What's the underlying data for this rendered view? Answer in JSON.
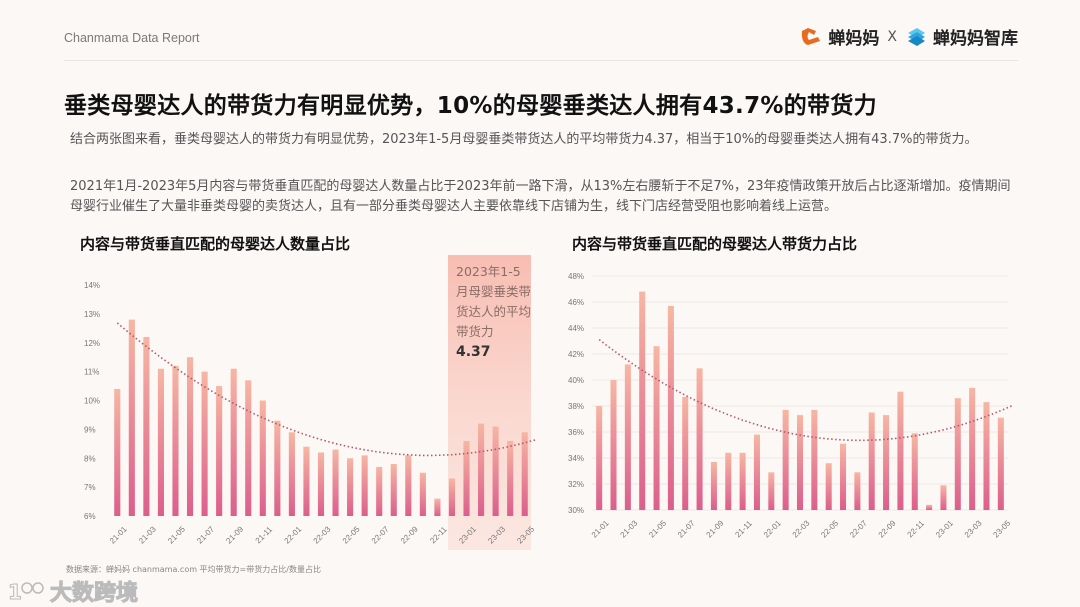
{
  "header": {
    "report_tag": "Chanmama Data Report",
    "logo_left": "蝉妈妈",
    "logo_sep": "X",
    "logo_right": "蝉妈妈智库",
    "brand_colors": {
      "chanmama_orange": "#e86a1f",
      "zhiku_blue": "#2aa7e0"
    }
  },
  "headline": "垂类母婴达人的带货力有明显优势，10%的母婴垂类达人拥有43.7%的带货力",
  "paragraphs": [
    "结合两张图来看，垂类母婴达人的带货力有明显优势，2023年1-5月母婴垂类带货达人的平均带货力4.37，相当于10%的母婴垂类达人拥有43.7%的带货力。",
    "2021年1月-2023年5月内容与带货垂直匹配的母婴达人数量占比于2023年前一路下滑，从13%左右腰斩于不足7%，23年疫情政策开放后占比逐渐增加。疫情期间母婴行业催生了大量非垂类母婴的卖货达人，且有一部分垂类母婴达人主要依靠线下店铺为生，线下门店经营受阻也影响着线上运营。"
  ],
  "highlight": {
    "text": "2023年1-5月母婴垂类带货达人的平均带货力",
    "value": "4.37"
  },
  "footer": {
    "source": "数据来源：蝉妈妈 chanmama.com    平均带货力=带货力占比/数量占比",
    "watermark": "大数跨境"
  },
  "chart_data": [
    {
      "type": "bar",
      "title": "内容与带货垂直匹配的母婴达人数量占比",
      "xlabel": "",
      "ylabel": "",
      "ylim": [
        6,
        14
      ],
      "yticks": [
        "6%",
        "7%",
        "8%",
        "9%",
        "10%",
        "11%",
        "12%",
        "13%",
        "14%"
      ],
      "tick_labels": [
        "21-01",
        "21-03",
        "21-05",
        "21-07",
        "21-09",
        "21-11",
        "22-01",
        "22-03",
        "22-05",
        "22-07",
        "22-09",
        "22-11",
        "23-01",
        "23-03",
        "23-05"
      ],
      "categories": [
        "21-01",
        "21-02",
        "21-03",
        "21-04",
        "21-05",
        "21-06",
        "21-07",
        "21-08",
        "21-09",
        "21-10",
        "21-11",
        "21-12",
        "22-01",
        "22-02",
        "22-03",
        "22-04",
        "22-05",
        "22-06",
        "22-07",
        "22-08",
        "22-09",
        "22-10",
        "22-11",
        "22-12",
        "23-01",
        "23-02",
        "23-03",
        "23-04",
        "23-05"
      ],
      "values": [
        10.4,
        12.8,
        12.2,
        11.1,
        11.2,
        11.5,
        11.0,
        10.5,
        11.1,
        10.7,
        10.0,
        9.3,
        8.9,
        8.4,
        8.2,
        8.3,
        8.0,
        8.1,
        7.7,
        7.8,
        8.1,
        7.5,
        6.6,
        7.3,
        8.6,
        9.2,
        9.1,
        8.6,
        8.9
      ],
      "trendline": "polynomial (dotted)",
      "grid": false,
      "highlight_range": [
        "23-01",
        "23-05"
      ]
    },
    {
      "type": "bar",
      "title": "内容与带货垂直匹配的母婴达人带货力占比",
      "xlabel": "",
      "ylabel": "",
      "ylim": [
        30,
        48
      ],
      "yticks": [
        "30%",
        "32%",
        "34%",
        "36%",
        "38%",
        "40%",
        "42%",
        "44%",
        "46%",
        "48%"
      ],
      "tick_labels": [
        "21-01",
        "21-03",
        "21-05",
        "21-07",
        "21-09",
        "21-11",
        "22-01",
        "22-03",
        "22-05",
        "22-07",
        "22-09",
        "22-11",
        "23-01",
        "23-03",
        "23-05"
      ],
      "categories": [
        "21-01",
        "21-02",
        "21-03",
        "21-04",
        "21-05",
        "21-06",
        "21-07",
        "21-08",
        "21-09",
        "21-10",
        "21-11",
        "21-12",
        "22-01",
        "22-02",
        "22-03",
        "22-04",
        "22-05",
        "22-06",
        "22-07",
        "22-08",
        "22-09",
        "22-10",
        "22-11",
        "22-12",
        "23-01",
        "23-02",
        "23-03",
        "23-04",
        "23-05"
      ],
      "values": [
        38.0,
        40.0,
        41.2,
        46.8,
        42.6,
        45.7,
        38.7,
        40.9,
        33.7,
        34.4,
        34.4,
        35.8,
        32.9,
        37.7,
        37.3,
        37.7,
        33.6,
        35.1,
        32.9,
        37.5,
        37.3,
        39.1,
        35.9,
        30.4,
        31.9,
        38.6,
        39.4,
        38.3,
        37.1
      ],
      "trendline": "polynomial (dotted)",
      "grid": true
    }
  ]
}
